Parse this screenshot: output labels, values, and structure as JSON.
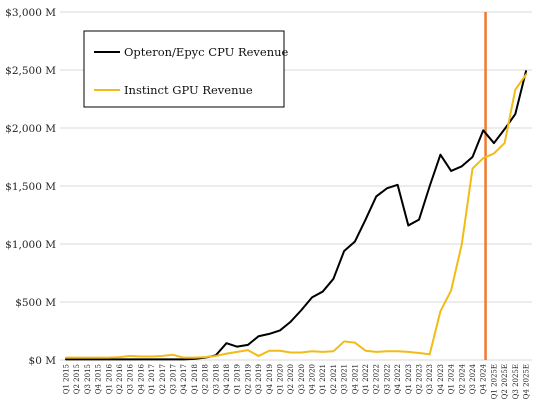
{
  "chart_data": {
    "type": "line",
    "title": "",
    "xlabel": "",
    "ylabel": "",
    "ylim": [
      0,
      3000
    ],
    "y_ticks": [
      0,
      500,
      1000,
      1500,
      2000,
      2500,
      3000
    ],
    "y_tick_labels": [
      "$0 M",
      "$500 M",
      "$1,000 M",
      "$1,500 M",
      "$2,000 M",
      "$2,500 M",
      "$3,000 M"
    ],
    "grid": "horizontal",
    "legend_position": "top-left",
    "marker_after_category": "Q4 2024",
    "marker_color": "#ef7a2e",
    "categories": [
      "Q1 2015",
      "Q2 2015",
      "Q3 2015",
      "Q4 2015",
      "Q1 2016",
      "Q2 2016",
      "Q3 2016",
      "Q4 2016",
      "Q1 2017",
      "Q2 2017",
      "Q3 2017",
      "Q4 2017",
      "Q1 2018",
      "Q2 2018",
      "Q3 2018",
      "Q4 2018",
      "Q1 2019",
      "Q2 2019",
      "Q3 2019",
      "Q4 2019",
      "Q1 2020",
      "Q2 2020",
      "Q3 2020",
      "Q4 2020",
      "Q1 2021",
      "Q2 2021",
      "Q3 2021",
      "Q4 2021",
      "Q1 2022",
      "Q2 2022",
      "Q3 2022",
      "Q4 2022",
      "Q1 2023",
      "Q2 2023",
      "Q3 2023",
      "Q4 2023",
      "Q1 2024",
      "Q2 2024",
      "Q3 2024",
      "Q4 2024",
      "Q1 2025E",
      "Q2 2025E",
      "Q3 2025E",
      "Q4 2025E"
    ],
    "series": [
      {
        "name": "Opteron/Epyc CPU Revenue",
        "color": "#000000",
        "values": [
          5,
          5,
          5,
          5,
          5,
          5,
          5,
          5,
          5,
          5,
          5,
          5,
          10,
          20,
          40,
          145,
          115,
          130,
          205,
          225,
          255,
          330,
          430,
          540,
          590,
          700,
          940,
          1020,
          1210,
          1410,
          1480,
          1510,
          1160,
          1210,
          1500,
          1770,
          1630,
          1670,
          1750,
          1980,
          1870,
          1990,
          2120,
          2490
        ]
      },
      {
        "name": "Instinct GPU Revenue",
        "color": "#f2bb16",
        "values": [
          20,
          20,
          20,
          20,
          20,
          25,
          35,
          30,
          30,
          35,
          45,
          20,
          20,
          25,
          35,
          55,
          70,
          85,
          35,
          80,
          80,
          65,
          65,
          75,
          70,
          75,
          160,
          150,
          80,
          70,
          75,
          75,
          70,
          60,
          50,
          420,
          600,
          1000,
          1650,
          1740,
          1780,
          1870,
          2330,
          2460
        ]
      }
    ]
  }
}
